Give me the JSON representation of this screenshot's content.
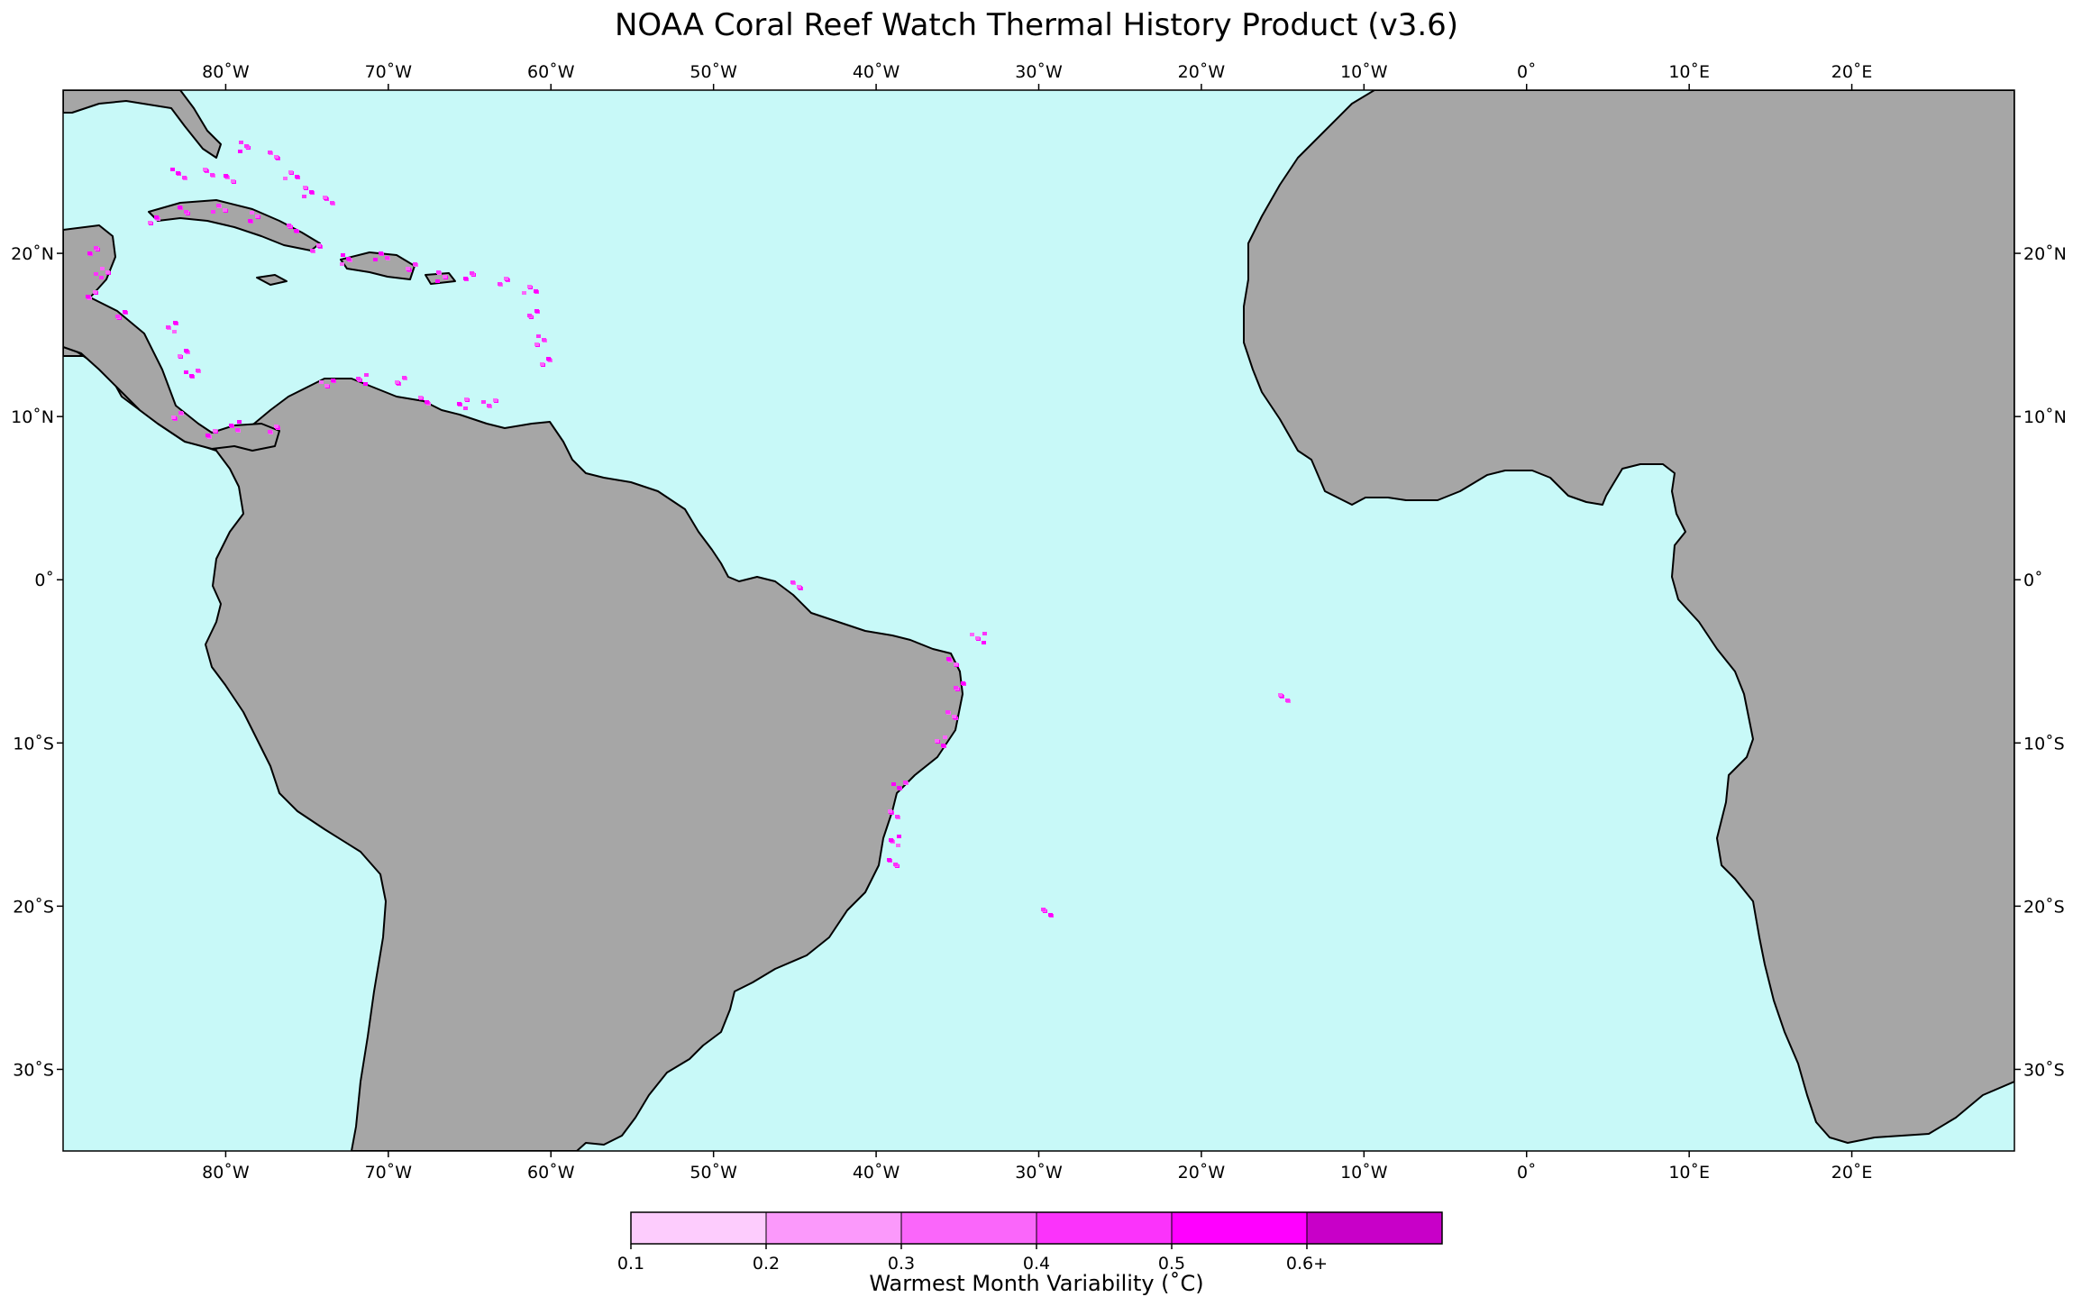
{
  "title": "NOAA Coral Reef Watch Thermal History Product (v3.6)",
  "map": {
    "region": "Tropical Atlantic Ocean",
    "lon_range": [
      -90,
      30
    ],
    "lat_range": [
      -35,
      30
    ],
    "ocean_color": "#c8f9f8",
    "land_color": "#a6a6a6",
    "coast_color": "#000000",
    "lon_ticks": [
      {
        "value": -80,
        "label": "80˚W"
      },
      {
        "value": -70,
        "label": "70˚W"
      },
      {
        "value": -60,
        "label": "60˚W"
      },
      {
        "value": -50,
        "label": "50˚W"
      },
      {
        "value": -40,
        "label": "40˚W"
      },
      {
        "value": -30,
        "label": "30˚W"
      },
      {
        "value": -20,
        "label": "20˚W"
      },
      {
        "value": -10,
        "label": "10˚W"
      },
      {
        "value": 0,
        "label": "0˚"
      },
      {
        "value": 10,
        "label": "10˚E"
      },
      {
        "value": 20,
        "label": "20˚E"
      }
    ],
    "lat_ticks": [
      {
        "value": 20,
        "label": "20˚N"
      },
      {
        "value": 10,
        "label": "10˚N"
      },
      {
        "value": 0,
        "label": "0˚"
      },
      {
        "value": -10,
        "label": "10˚S"
      },
      {
        "value": -20,
        "label": "20˚S"
      },
      {
        "value": -30,
        "label": "30˚S"
      }
    ]
  },
  "colorbar": {
    "title": "Warmest Month Variability (˚C)",
    "bins": [
      {
        "color": "#fdccfd"
      },
      {
        "color": "#fb99fb"
      },
      {
        "color": "#fa66fa"
      },
      {
        "color": "#fb33fb"
      },
      {
        "color": "#ff00ff"
      },
      {
        "color": "#c800c8"
      }
    ],
    "tick_labels": [
      "0.1",
      "0.2",
      "0.3",
      "0.4",
      "0.5",
      "0.6+"
    ]
  }
}
